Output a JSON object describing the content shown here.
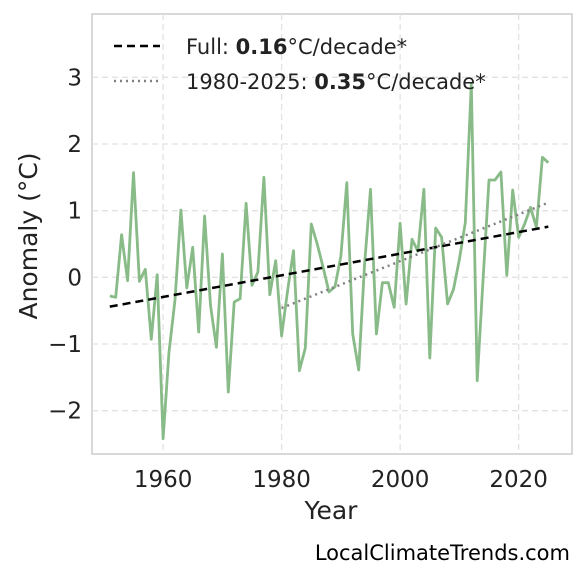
{
  "chart_data": {
    "type": "line",
    "xlabel": "Year",
    "ylabel": "Anomaly (°C)",
    "xlim": [
      1948,
      2029
    ],
    "ylim": [
      -2.65,
      3.95
    ],
    "xticks": [
      1960,
      1980,
      2000,
      2020
    ],
    "yticks": [
      -2,
      -1,
      0,
      1,
      2,
      3
    ],
    "ytick_labels": [
      "−2",
      "−1",
      "0",
      "1",
      "2",
      "3"
    ],
    "grid": true,
    "legend_position": "top-left",
    "colors": {
      "series": "#88bb88",
      "full_trend": "#000000",
      "recent_trend": "#808080"
    },
    "series": [
      {
        "x": [
          1951,
          1952,
          1953,
          1954,
          1955,
          1956,
          1957,
          1958,
          1959,
          1960,
          1961,
          1962,
          1963,
          1964,
          1965,
          1966,
          1967,
          1968,
          1969,
          1970,
          1971,
          1972,
          1973,
          1974,
          1975,
          1976,
          1977,
          1978,
          1979,
          1980,
          1981,
          1982,
          1983,
          1984,
          1985,
          1986,
          1987,
          1988,
          1989,
          1990,
          1991,
          1992,
          1993,
          1994,
          1995,
          1996,
          1997,
          1998,
          1999,
          2000,
          2001,
          2002,
          2003,
          2004,
          2005,
          2006,
          2007,
          2008,
          2009,
          2010,
          2011,
          2012,
          2013,
          2014,
          2015,
          2016,
          2017,
          2018,
          2019,
          2020,
          2021,
          2022,
          2023,
          2024,
          2025
        ],
        "y": [
          -0.28,
          -0.3,
          0.64,
          -0.05,
          1.57,
          -0.06,
          0.12,
          -0.93,
          0.04,
          -2.42,
          -1.12,
          -0.34,
          1.01,
          -0.16,
          0.45,
          -0.82,
          0.92,
          -0.42,
          -1.05,
          0.35,
          -1.72,
          -0.37,
          -0.32,
          1.11,
          -0.12,
          0.08,
          1.5,
          -0.26,
          0.25,
          -0.88,
          -0.2,
          0.4,
          -1.4,
          -1.06,
          0.8,
          0.5,
          0.15,
          -0.22,
          -0.14,
          0.32,
          1.42,
          -0.85,
          -1.39,
          0.2,
          1.32,
          -0.85,
          -0.08,
          -0.08,
          -0.45,
          0.81,
          -0.4,
          0.57,
          0.39,
          1.32,
          -1.21,
          0.74,
          0.6,
          -0.4,
          -0.18,
          0.27,
          0.82,
          2.9,
          -1.55,
          -0.02,
          1.46,
          1.46,
          1.58,
          0.03,
          1.31,
          0.6,
          0.8,
          1.05,
          0.75,
          1.8,
          1.72
        ]
      }
    ],
    "trends": [
      {
        "label_prefix": "Full: ",
        "value": "0.16",
        "label_suffix": "°C/decade*",
        "style": "dashed",
        "x": [
          1951,
          2025
        ],
        "y": [
          -0.44,
          0.76
        ]
      },
      {
        "label_prefix": "1980-2025: ",
        "value": "0.35",
        "label_suffix": "°C/decade*",
        "style": "dotted",
        "x": [
          1980,
          2025
        ],
        "y": [
          -0.46,
          1.12
        ]
      }
    ]
  },
  "credit": "LocalClimateTrends.com"
}
